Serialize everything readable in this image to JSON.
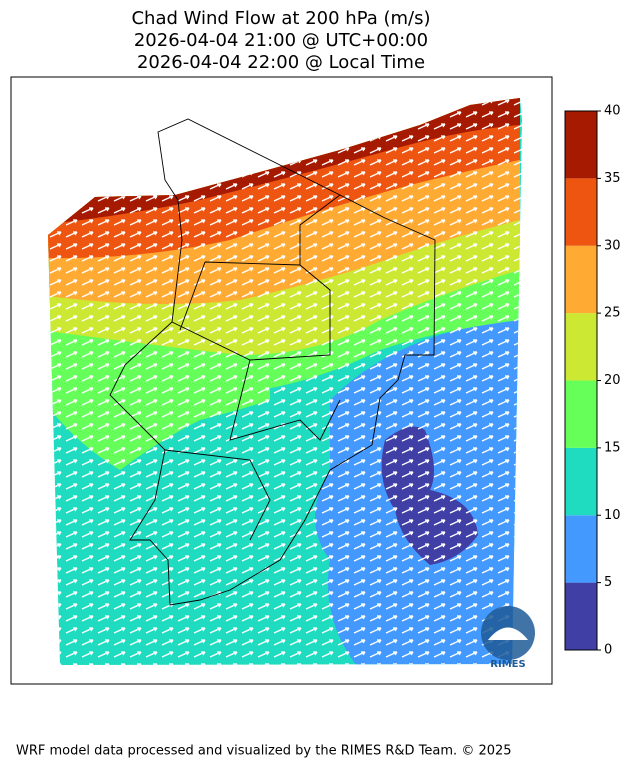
{
  "title": [
    "Chad Wind Flow at 200 hPa (m/s)",
    "2026-04-04 21:00 @ UTC+00:00",
    "2026-04-04 22:00 @ Local Time"
  ],
  "colorbar": {
    "ticks": [
      0,
      5,
      10,
      15,
      20,
      25,
      30,
      35,
      40
    ],
    "colors": [
      "#3f3fa6",
      "#4499ff",
      "#1fdbc0",
      "#66ff5a",
      "#cce833",
      "#ffaa33",
      "#ee5511",
      "#a51a00"
    ]
  },
  "logo": "RIMES",
  "footer": "WRF model data processed and visualized by the RIMES R&D Team. © 2025"
}
